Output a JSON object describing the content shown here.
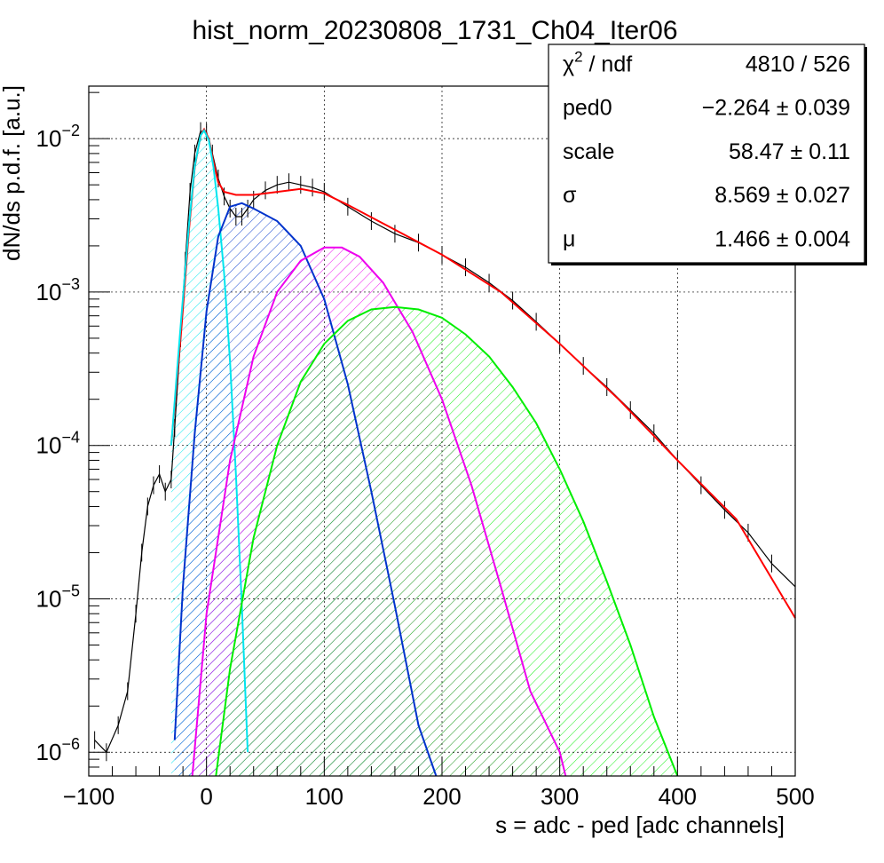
{
  "chart_data": {
    "type": "line",
    "title": "hist_norm_20230808_1731_Ch04_Iter06",
    "xlabel": "s = adc - ped [adc channels]",
    "ylabel": "dN/ds p.d.f. [a.u.]",
    "xlim": [
      -100,
      500
    ],
    "ylim": [
      7e-07,
      0.022
    ],
    "y_scale": "log",
    "grid": true,
    "x_ticks": [
      {
        "v": -100,
        "label": "−100"
      },
      {
        "v": 0,
        "label": "0"
      },
      {
        "v": 100,
        "label": "100"
      },
      {
        "v": 200,
        "label": "200"
      },
      {
        "v": 300,
        "label": "300"
      },
      {
        "v": 400,
        "label": "400"
      },
      {
        "v": 500,
        "label": "500"
      }
    ],
    "y_ticks": [
      {
        "v": 1e-06,
        "base": "10",
        "exp": "−6"
      },
      {
        "v": 1e-05,
        "base": "10",
        "exp": "−5"
      },
      {
        "v": 0.0001,
        "base": "10",
        "exp": "−4"
      },
      {
        "v": 0.001,
        "base": "10",
        "exp": "−3"
      },
      {
        "v": 0.01,
        "base": "10",
        "exp": "−2"
      }
    ],
    "stats_box": {
      "position": "top-right",
      "rows": [
        {
          "name": "χ",
          "name_sup": "2",
          "name_rest": " / ndf",
          "value": "4810 / 526"
        },
        {
          "name": "ped0",
          "name_sup": "",
          "name_rest": "",
          "value": "−2.264 ± 0.039"
        },
        {
          "name": "scale",
          "name_sup": "",
          "name_rest": "",
          "value": "58.47 ± 0.11"
        },
        {
          "name": "σ",
          "name_sup": "",
          "name_rest": "",
          "value": "8.569 ± 0.027"
        },
        {
          "name": "μ",
          "name_sup": "",
          "name_rest": "",
          "value": "1.466 ± 0.004"
        }
      ]
    },
    "histogram": {
      "color": "#000000",
      "points": [
        [
          -95,
          1.2e-06
        ],
        [
          -85,
          1e-06
        ],
        [
          -75,
          1.5e-06
        ],
        [
          -67,
          2.5e-06
        ],
        [
          -60,
          8e-06
        ],
        [
          -55,
          2e-05
        ],
        [
          -50,
          4e-05
        ],
        [
          -45,
          5.5e-05
        ],
        [
          -40,
          6.5e-05
        ],
        [
          -35,
          5e-05
        ],
        [
          -30,
          6e-05
        ],
        [
          -27,
          0.00013
        ],
        [
          -22,
          0.0005
        ],
        [
          -18,
          0.0016
        ],
        [
          -14,
          0.0045
        ],
        [
          -10,
          0.008
        ],
        [
          -5,
          0.0112
        ],
        [
          0,
          0.011
        ],
        [
          5,
          0.008
        ],
        [
          10,
          0.0055
        ],
        [
          15,
          0.0042
        ],
        [
          20,
          0.0035
        ],
        [
          25,
          0.0031
        ],
        [
          30,
          0.0031
        ],
        [
          35,
          0.0035
        ],
        [
          40,
          0.004
        ],
        [
          50,
          0.0046
        ],
        [
          60,
          0.005
        ],
        [
          70,
          0.0052
        ],
        [
          80,
          0.005
        ],
        [
          90,
          0.0048
        ],
        [
          100,
          0.0045
        ],
        [
          120,
          0.0036
        ],
        [
          140,
          0.0029
        ],
        [
          160,
          0.0024
        ],
        [
          180,
          0.0021
        ],
        [
          200,
          0.00175
        ],
        [
          220,
          0.00145
        ],
        [
          240,
          0.00115
        ],
        [
          260,
          0.00088
        ],
        [
          280,
          0.00064
        ],
        [
          300,
          0.00046
        ],
        [
          320,
          0.00033
        ],
        [
          340,
          0.00024
        ],
        [
          360,
          0.00017
        ],
        [
          380,
          0.00012
        ],
        [
          400,
          8e-05
        ],
        [
          420,
          5.5e-05
        ],
        [
          440,
          3.8e-05
        ],
        [
          460,
          2.7e-05
        ],
        [
          480,
          1.7e-05
        ],
        [
          500,
          1.2e-05
        ]
      ]
    },
    "series": [
      {
        "color": "#ff0000",
        "points": [
          [
            -30,
            0.0001
          ],
          [
            -22,
            0.0005
          ],
          [
            -15,
            0.0025
          ],
          [
            -10,
            0.0065
          ],
          [
            -5,
            0.0105
          ],
          [
            -2,
            0.0115
          ],
          [
            2,
            0.01
          ],
          [
            6,
            0.007
          ],
          [
            10,
            0.0052
          ],
          [
            15,
            0.0045
          ],
          [
            25,
            0.0043
          ],
          [
            40,
            0.0043
          ],
          [
            60,
            0.0045
          ],
          [
            80,
            0.0047
          ],
          [
            100,
            0.0044
          ],
          [
            120,
            0.0037
          ],
          [
            150,
            0.0028
          ],
          [
            200,
            0.00175
          ],
          [
            250,
            0.001
          ],
          [
            300,
            0.00046
          ],
          [
            350,
            0.0002
          ],
          [
            400,
            8e-05
          ],
          [
            450,
            3.3e-05
          ],
          [
            500,
            7.5e-06
          ]
        ]
      },
      {
        "color": "#00e5ee",
        "fill": true,
        "points": [
          [
            -30,
            0.0001
          ],
          [
            -22,
            0.0006
          ],
          [
            -15,
            0.0027
          ],
          [
            -10,
            0.0066
          ],
          [
            -5,
            0.0105
          ],
          [
            -2,
            0.0113
          ],
          [
            2,
            0.0098
          ],
          [
            6,
            0.0065
          ],
          [
            10,
            0.0035
          ],
          [
            15,
            0.0013
          ],
          [
            20,
            0.00035
          ],
          [
            25,
            6.5e-05
          ],
          [
            30,
            9e-06
          ],
          [
            35,
            1e-06
          ]
        ]
      },
      {
        "color": "#0033cc",
        "fill": true,
        "points": [
          [
            -27,
            1.2e-06
          ],
          [
            -20,
            1.2e-05
          ],
          [
            -10,
            0.00012
          ],
          [
            0,
            0.00075
          ],
          [
            10,
            0.0023
          ],
          [
            20,
            0.0036
          ],
          [
            30,
            0.0038
          ],
          [
            40,
            0.0035
          ],
          [
            60,
            0.0029
          ],
          [
            80,
            0.002
          ],
          [
            100,
            0.0009
          ],
          [
            120,
            0.00025
          ],
          [
            140,
            5e-05
          ],
          [
            160,
            9e-06
          ],
          [
            180,
            1.5e-06
          ],
          [
            195,
            7e-07
          ]
        ]
      },
      {
        "color": "#ee00ee",
        "fill": true,
        "points": [
          [
            -12,
            7e-07
          ],
          [
            0,
            8e-06
          ],
          [
            20,
            8e-05
          ],
          [
            40,
            0.00038
          ],
          [
            60,
            0.001
          ],
          [
            80,
            0.0016
          ],
          [
            100,
            0.00195
          ],
          [
            115,
            0.00195
          ],
          [
            130,
            0.0017
          ],
          [
            150,
            0.00115
          ],
          [
            175,
            0.00055
          ],
          [
            200,
            0.0002
          ],
          [
            225,
            5.5e-05
          ],
          [
            250,
            1.2e-05
          ],
          [
            275,
            2.5e-06
          ],
          [
            300,
            1e-06
          ],
          [
            305,
            7e-07
          ]
        ]
      },
      {
        "color": "#00ee00",
        "fill": true,
        "points": [
          [
            8,
            7e-07
          ],
          [
            20,
            3.5e-06
          ],
          [
            40,
            2.5e-05
          ],
          [
            60,
            0.0001
          ],
          [
            80,
            0.00026
          ],
          [
            100,
            0.00046
          ],
          [
            120,
            0.00065
          ],
          [
            140,
            0.00077
          ],
          [
            160,
            0.0008
          ],
          [
            180,
            0.00077
          ],
          [
            200,
            0.00068
          ],
          [
            220,
            0.00053
          ],
          [
            240,
            0.00038
          ],
          [
            260,
            0.00024
          ],
          [
            280,
            0.00014
          ],
          [
            300,
            7e-05
          ],
          [
            320,
            3.2e-05
          ],
          [
            340,
            1.3e-05
          ],
          [
            360,
            5e-06
          ],
          [
            380,
            1.7e-06
          ],
          [
            400,
            7e-07
          ]
        ]
      }
    ]
  }
}
